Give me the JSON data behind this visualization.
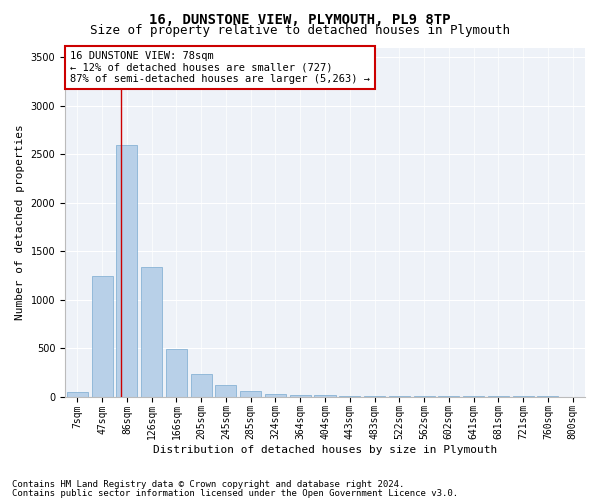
{
  "title": "16, DUNSTONE VIEW, PLYMOUTH, PL9 8TP",
  "subtitle": "Size of property relative to detached houses in Plymouth",
  "xlabel": "Distribution of detached houses by size in Plymouth",
  "ylabel": "Number of detached properties",
  "categories": [
    "7sqm",
    "47sqm",
    "86sqm",
    "126sqm",
    "166sqm",
    "205sqm",
    "245sqm",
    "285sqm",
    "324sqm",
    "364sqm",
    "404sqm",
    "443sqm",
    "483sqm",
    "522sqm",
    "562sqm",
    "602sqm",
    "641sqm",
    "681sqm",
    "721sqm",
    "760sqm",
    "800sqm"
  ],
  "values": [
    50,
    1240,
    2590,
    1340,
    490,
    235,
    115,
    55,
    30,
    20,
    15,
    10,
    10,
    5,
    2,
    2,
    1,
    1,
    1,
    1,
    0
  ],
  "bar_color": "#b8d0e8",
  "bar_edge_color": "#7aaad0",
  "annotation_text": "16 DUNSTONE VIEW: 78sqm\n← 12% of detached houses are smaller (727)\n87% of semi-detached houses are larger (5,263) →",
  "annotation_box_color": "#ffffff",
  "annotation_border_color": "#cc0000",
  "ylim": [
    0,
    3600
  ],
  "yticks": [
    0,
    500,
    1000,
    1500,
    2000,
    2500,
    3000,
    3500
  ],
  "background_color": "#eef2f8",
  "footer_line1": "Contains HM Land Registry data © Crown copyright and database right 2024.",
  "footer_line2": "Contains public sector information licensed under the Open Government Licence v3.0.",
  "title_fontsize": 10,
  "subtitle_fontsize": 9,
  "axis_label_fontsize": 8,
  "tick_fontsize": 7,
  "annotation_fontsize": 7.5,
  "footer_fontsize": 6.5,
  "red_line_x": 1.77
}
